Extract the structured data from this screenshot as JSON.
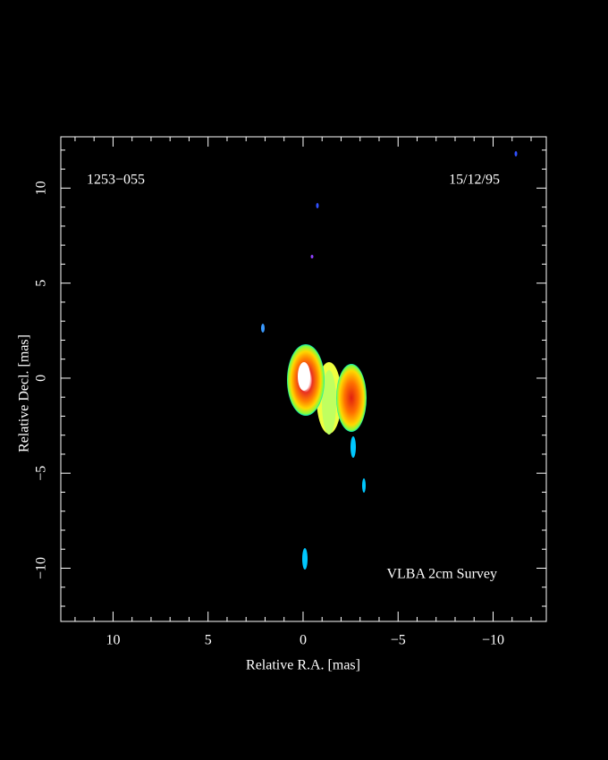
{
  "chart_data": {
    "type": "image",
    "source": "1253−055",
    "date": "15/12/95",
    "annotation": "VLBA 2cm Survey",
    "xlabel": "Relative R.A. [mas]",
    "ylabel": "Relative Decl. [mas]",
    "xlim": [
      12.75,
      -12.8
    ],
    "ylim": [
      -12.8,
      12.7
    ],
    "xticks": [
      10,
      5,
      0,
      {
        "value": -5,
        "label": "−5"
      },
      {
        "value": -10,
        "label": "−10"
      }
    ],
    "yticks": [
      {
        "value": -10,
        "label": "−10"
      },
      {
        "value": -5,
        "label": "−5"
      },
      0,
      5,
      10
    ],
    "xticks_minor": [
      12,
      11,
      9,
      8,
      7,
      6,
      4,
      3,
      2,
      1,
      -1,
      -2,
      -3,
      -4,
      -6,
      -7,
      -8,
      -9,
      -11,
      -12
    ],
    "yticks_minor": [
      -12,
      -11,
      -9,
      -8,
      -7,
      -6,
      -4,
      -3,
      -2,
      -1,
      1,
      2,
      3,
      4,
      6,
      7,
      8,
      9,
      11,
      12
    ]
  }
}
